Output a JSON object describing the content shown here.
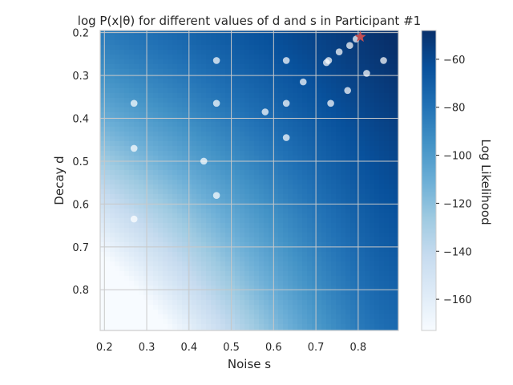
{
  "chart_data": {
    "type": "heatmap",
    "title": "log P(x|θ) for different values of d and s in Participant #1",
    "xlabel": "Noise s",
    "ylabel": "Decay d",
    "colorbar_label": "Log Likelihood",
    "xlim": [
      0.19,
      0.895
    ],
    "ylim": [
      0.195,
      0.895
    ],
    "y_inverted": true,
    "grid": true,
    "colormap": "Blues",
    "color_range": [
      -173,
      -48
    ],
    "x_ticks": [
      "0.2",
      "0.3",
      "0.4",
      "0.5",
      "0.6",
      "0.7",
      "0.8"
    ],
    "x_tick_values": [
      0.2,
      0.3,
      0.4,
      0.5,
      0.6,
      0.7,
      0.8
    ],
    "y_ticks": [
      "0.2",
      "0.3",
      "0.4",
      "0.5",
      "0.6",
      "0.7",
      "0.8"
    ],
    "y_tick_values": [
      0.2,
      0.3,
      0.4,
      0.5,
      0.6,
      0.7,
      0.8
    ],
    "colorbar_ticks": [
      "−60",
      "−80",
      "−100",
      "−120",
      "−140",
      "−160"
    ],
    "colorbar_tick_values": [
      -60,
      -80,
      -100,
      -120,
      -140,
      -160
    ],
    "samples": [
      {
        "s": 0.27,
        "d": 0.365
      },
      {
        "s": 0.27,
        "d": 0.47
      },
      {
        "s": 0.27,
        "d": 0.635
      },
      {
        "s": 0.435,
        "d": 0.5
      },
      {
        "s": 0.465,
        "d": 0.265
      },
      {
        "s": 0.465,
        "d": 0.365
      },
      {
        "s": 0.465,
        "d": 0.58
      },
      {
        "s": 0.58,
        "d": 0.385
      },
      {
        "s": 0.63,
        "d": 0.265
      },
      {
        "s": 0.63,
        "d": 0.365
      },
      {
        "s": 0.63,
        "d": 0.445
      },
      {
        "s": 0.67,
        "d": 0.315
      },
      {
        "s": 0.725,
        "d": 0.27
      },
      {
        "s": 0.73,
        "d": 0.265
      },
      {
        "s": 0.735,
        "d": 0.365
      },
      {
        "s": 0.755,
        "d": 0.245
      },
      {
        "s": 0.775,
        "d": 0.335
      },
      {
        "s": 0.78,
        "d": 0.23
      },
      {
        "s": 0.795,
        "d": 0.215
      },
      {
        "s": 0.82,
        "d": 0.295
      },
      {
        "s": 0.86,
        "d": 0.265
      }
    ],
    "best": {
      "s": 0.805,
      "d": 0.21
    },
    "colors": {
      "sample": "#ffffff",
      "best": "#c44e52",
      "grid": "#c8c8c8",
      "frame": "#cccccc"
    }
  }
}
